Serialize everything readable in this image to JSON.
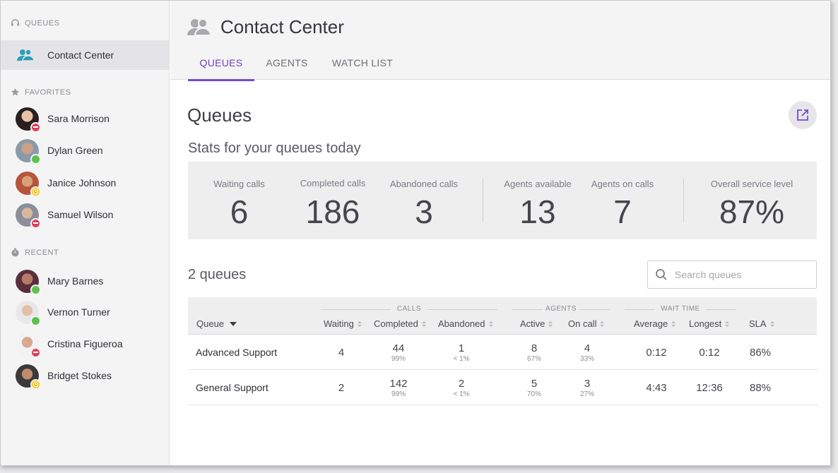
{
  "sidebar": {
    "queues_section": "QUEUES",
    "queue_item": "Contact Center",
    "favorites_section": "FAVORITES",
    "favorites": [
      {
        "name": "Sara Morrison",
        "status": "busy",
        "color": "#3a2a2a"
      },
      {
        "name": "Dylan Green",
        "status": "online",
        "color": "#6a4a3a"
      },
      {
        "name": "Janice Johnson",
        "status": "away",
        "color": "#b5553a"
      },
      {
        "name": "Samuel Wilson",
        "status": "busy",
        "color": "#8a8f99"
      }
    ],
    "recent_section": "RECENT",
    "recent": [
      {
        "name": "Mary Barnes",
        "status": "online",
        "color": "#5a2f3a"
      },
      {
        "name": "Vernon Turner",
        "status": "online",
        "color": "#a08a7a"
      },
      {
        "name": "Cristina Figueroa",
        "status": "busy",
        "color": "#6a3a2a"
      },
      {
        "name": "Bridget Stokes",
        "status": "away",
        "color": "#3a3a3a"
      }
    ]
  },
  "header": {
    "title": "Contact Center",
    "tabs": [
      {
        "label": "QUEUES",
        "active": true
      },
      {
        "label": "AGENTS",
        "active": false
      },
      {
        "label": "WATCH LIST",
        "active": false
      }
    ]
  },
  "main": {
    "title": "Queues",
    "subtitle": "Stats for your queues today",
    "stats": [
      {
        "label": "Waiting calls",
        "value": "6"
      },
      {
        "label": "Completed calls",
        "value": "186"
      },
      {
        "label": "Abandoned calls",
        "value": "3"
      },
      {
        "label": "Agents available",
        "value": "13"
      },
      {
        "label": "Agents on calls",
        "value": "7"
      },
      {
        "label": "Overall service level",
        "value": "87%"
      }
    ],
    "queue_count": "2 queues",
    "search_placeholder": "Search queues"
  },
  "table": {
    "groups": {
      "calls": "CALLS",
      "agents": "AGENTS",
      "wait_time": "WAIT TIME"
    },
    "columns": {
      "queue": "Queue",
      "waiting": "Waiting",
      "completed": "Completed",
      "abandoned": "Abandoned",
      "active": "Active",
      "on_call": "On call",
      "average": "Average",
      "longest": "Longest",
      "sla": "SLA"
    },
    "rows": [
      {
        "queue": "Advanced Support",
        "waiting": "4",
        "completed": "44",
        "completed_pct": "99%",
        "abandoned": "1",
        "abandoned_pct": "< 1%",
        "active": "8",
        "active_pct": "67%",
        "on_call": "4",
        "on_call_pct": "33%",
        "average": "0:12",
        "longest": "0:12",
        "sla": "86%"
      },
      {
        "queue": "General Support",
        "waiting": "2",
        "completed": "142",
        "completed_pct": "99%",
        "abandoned": "2",
        "abandoned_pct": "< 1%",
        "active": "5",
        "active_pct": "70%",
        "on_call": "3",
        "on_call_pct": "27%",
        "average": "4:43",
        "longest": "12:36",
        "sla": "88%"
      }
    ]
  },
  "colors": {
    "accent": "#7a4bd0",
    "busy": "#e03e5a",
    "online": "#5cc24a",
    "away": "#f1c40f"
  }
}
